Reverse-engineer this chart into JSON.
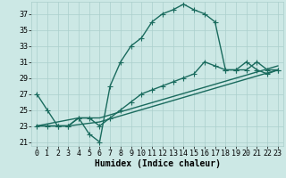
{
  "title": "",
  "xlabel": "Humidex (Indice chaleur)",
  "bg_color": "#cce8e5",
  "line_color": "#1a6b5e",
  "grid_color": "#aacfcc",
  "xlim": [
    -0.5,
    23.5
  ],
  "ylim": [
    20.5,
    38.5
  ],
  "xticks": [
    0,
    1,
    2,
    3,
    4,
    5,
    6,
    7,
    8,
    9,
    10,
    11,
    12,
    13,
    14,
    15,
    16,
    17,
    18,
    19,
    20,
    21,
    22,
    23
  ],
  "yticks": [
    21,
    23,
    25,
    27,
    29,
    31,
    33,
    35,
    37
  ],
  "line1_x": [
    0,
    1,
    2,
    3,
    4,
    5,
    6,
    7,
    8,
    9,
    10,
    11,
    12,
    13,
    14,
    15,
    16,
    17,
    18,
    19,
    20,
    21,
    22,
    23
  ],
  "line1_y": [
    27,
    25,
    23,
    23,
    24,
    22,
    21,
    28,
    31,
    33,
    34,
    36,
    37,
    37.5,
    38.2,
    37.5,
    37,
    36,
    30,
    30,
    31,
    30,
    29.5,
    30
  ],
  "line2_x": [
    0,
    1,
    2,
    3,
    4,
    5,
    6,
    7,
    8,
    9,
    10,
    11,
    12,
    13,
    14,
    15,
    16,
    17,
    18,
    19,
    20,
    21,
    22,
    23
  ],
  "line2_y": [
    23,
    23,
    23,
    23,
    24,
    24,
    23,
    24,
    25,
    26,
    27,
    27.5,
    28,
    28.5,
    29,
    29.5,
    31,
    30.5,
    30,
    30,
    30,
    31,
    30,
    30
  ],
  "line3_x": [
    0,
    3,
    6,
    23
  ],
  "line3_y": [
    23,
    23,
    23.5,
    30
  ],
  "line4_x": [
    0,
    4,
    6,
    23
  ],
  "line4_y": [
    23,
    24,
    24,
    30.5
  ],
  "marker": "+",
  "markersize": 4,
  "linewidth": 1.0,
  "tick_fontsize": 6,
  "label_fontsize": 7,
  "figwidth": 3.2,
  "figheight": 2.0,
  "dpi": 100
}
